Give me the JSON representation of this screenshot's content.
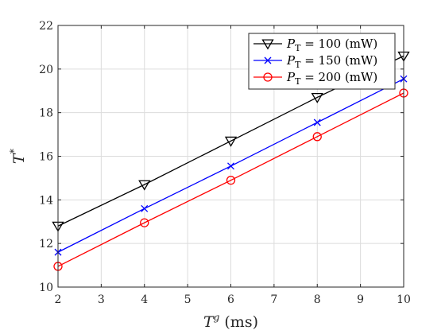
{
  "chart_data": {
    "type": "line",
    "xlabel_main": "T",
    "xlabel_sup": "g",
    "xlabel_unit": " (ms)",
    "ylabel_main": "T",
    "ylabel_sup": "*",
    "xlim": [
      2,
      10
    ],
    "ylim": [
      10,
      22
    ],
    "xticks": [
      "2",
      "3",
      "4",
      "5",
      "6",
      "7",
      "8",
      "9",
      "10"
    ],
    "yticks": [
      "10",
      "12",
      "14",
      "16",
      "18",
      "20",
      "22"
    ],
    "grid": true,
    "legend_position": "top-right",
    "x": [
      2,
      4,
      6,
      8,
      10
    ],
    "series": [
      {
        "name": "P_T = 100 (mW)",
        "legend_p": "P",
        "legend_sub": "T",
        "legend_rest": " = 100 (mW)",
        "color": "#000000",
        "marker": "triangle-down",
        "values": [
          12.8,
          14.7,
          16.7,
          18.7,
          20.6
        ]
      },
      {
        "name": "P_T = 150 (mW)",
        "legend_p": "P",
        "legend_sub": "T",
        "legend_rest": " = 150 (mW)",
        "color": "#0000ff",
        "marker": "x",
        "values": [
          11.6,
          13.6,
          15.55,
          17.55,
          19.55
        ]
      },
      {
        "name": "P_T = 200 (mW)",
        "legend_p": "P",
        "legend_sub": "T",
        "legend_rest": " = 200 (mW)",
        "color": "#ff0000",
        "marker": "circle",
        "values": [
          10.95,
          12.95,
          14.9,
          16.9,
          18.9
        ]
      }
    ]
  }
}
